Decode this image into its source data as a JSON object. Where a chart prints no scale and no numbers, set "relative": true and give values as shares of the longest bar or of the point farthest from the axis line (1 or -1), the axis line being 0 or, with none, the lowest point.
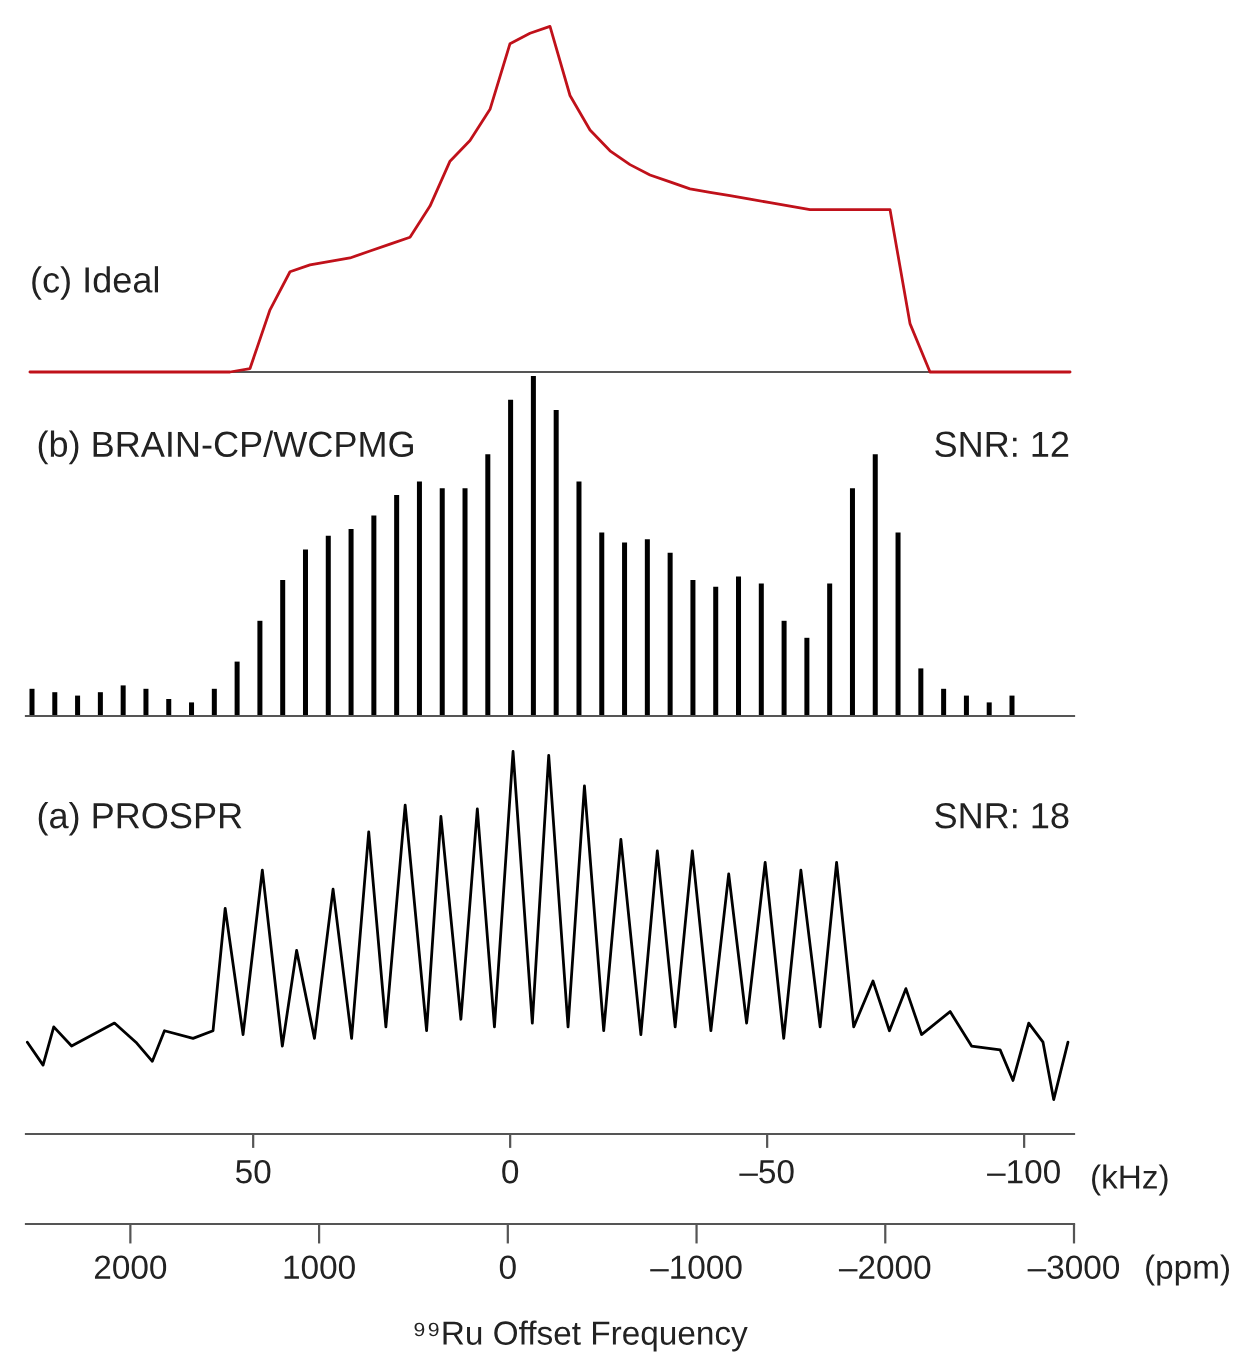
{
  "chart_data": [
    {
      "type": "line",
      "title": "(c) Ideal",
      "relative": true,
      "tick_labels": false,
      "color": "#c0111a",
      "categories": [
        null,
        null,
        null,
        null,
        null,
        null,
        null,
        null,
        null,
        null,
        null,
        null,
        null,
        null,
        null,
        null,
        null,
        null,
        null,
        null,
        null,
        null,
        null,
        null,
        null,
        null,
        null,
        null,
        null,
        null,
        null,
        null,
        null,
        null,
        null,
        null,
        null,
        null,
        null,
        null,
        null,
        null,
        null,
        null,
        null,
        null,
        null,
        null,
        null,
        null,
        null,
        null,
        null
      ],
      "values": [
        0,
        0,
        0,
        0,
        0,
        0,
        0,
        0,
        0,
        0,
        0,
        0.01,
        0.18,
        0.29,
        0.31,
        0.32,
        0.33,
        0.35,
        0.37,
        0.39,
        0.48,
        0.61,
        0.67,
        0.76,
        0.95,
        0.98,
        1.0,
        0.8,
        0.7,
        0.64,
        0.6,
        0.57,
        0.55,
        0.53,
        0.52,
        0.51,
        0.5,
        0.49,
        0.48,
        0.47,
        0.47,
        0.47,
        0.47,
        0.47,
        0.14,
        0,
        0,
        0,
        0,
        0,
        0,
        0,
        0
      ]
    },
    {
      "type": "bar",
      "title": "(b) BRAIN-CP/WCPMG",
      "relative": true,
      "tick_labels": false,
      "color": "#000000",
      "annotations": [
        "SNR: 12"
      ],
      "categories": [
        null,
        null,
        null,
        null,
        null,
        null,
        null,
        null,
        null,
        null,
        null,
        null,
        null,
        null,
        null,
        null,
        null,
        null,
        null,
        null,
        null,
        null,
        null,
        null,
        null,
        null,
        null,
        null,
        null,
        null,
        null,
        null,
        null,
        null,
        null,
        null,
        null,
        null,
        null,
        null,
        null,
        null,
        null,
        null
      ],
      "values": [
        0.08,
        0.07,
        0.06,
        0.07,
        0.09,
        0.08,
        0.05,
        0.04,
        0.08,
        0.16,
        0.28,
        0.4,
        0.49,
        0.53,
        0.55,
        0.59,
        0.65,
        0.69,
        0.67,
        0.67,
        0.77,
        0.93,
        1.0,
        0.9,
        0.69,
        0.54,
        0.51,
        0.52,
        0.48,
        0.4,
        0.38,
        0.41,
        0.39,
        0.28,
        0.23,
        0.39,
        0.67,
        0.77,
        0.54,
        0.14,
        0.08,
        0.06,
        0.04,
        0.06
      ]
    },
    {
      "type": "line",
      "title": "(a) PROSPR",
      "relative": true,
      "tick_labels": "x",
      "color": "#000000",
      "xlim": [
        94.2,
        -109.7
      ],
      "xticks": [
        50,
        0,
        {
          "value": -50,
          "label": "–50"
        },
        {
          "value": -100,
          "label": "–100"
        }
      ],
      "xlabel": "(kHz)",
      "x2lim": [
        2553,
        -3000
      ],
      "x2ticks": [
        2000,
        1000,
        0,
        {
          "value": -1000,
          "label": "–1000"
        },
        {
          "value": -2000,
          "label": "–2000"
        },
        {
          "value": -3000,
          "label": "–3000"
        }
      ],
      "x2label": "(ppm)",
      "annotations": [
        "SNR: 18",
        "⁹⁹Ru Offset Frequency"
      ],
      "x": [
        93.94,
        90.88,
        88.8,
        85.33,
        81.16,
        76.99,
        72.82,
        69.62,
        67.26,
        61.7,
        57.81,
        55.45,
        51.97,
        48.22,
        44.33,
        41.55,
        38.08,
        34.46,
        30.85,
        27.52,
        24.18,
        20.43,
        16.26,
        13.48,
        9.59,
        6.39,
        3.06,
        -0.56,
        -4.31,
        -7.5,
        -11.26,
        -14.45,
        -18.2,
        -21.54,
        -25.43,
        -28.63,
        -32.1,
        -35.44,
        -39.05,
        -42.52,
        -46.0,
        -49.61,
        -53.22,
        -56.56,
        -60.31,
        -63.51,
        -66.84,
        -70.59,
        -73.79,
        -76.99,
        -80.04,
        -85.6,
        -89.77,
        -95.33,
        -97.83,
        -100.89,
        -103.67,
        -105.75,
        -108.53
      ],
      "values": [
        0.24,
        0.18,
        0.28,
        0.23,
        0.26,
        0.29,
        0.24,
        0.19,
        0.27,
        0.25,
        0.27,
        0.59,
        0.26,
        0.69,
        0.23,
        0.48,
        0.25,
        0.64,
        0.25,
        0.79,
        0.28,
        0.86,
        0.27,
        0.83,
        0.3,
        0.85,
        0.28,
        1.0,
        0.29,
        0.99,
        0.28,
        0.91,
        0.27,
        0.77,
        0.26,
        0.74,
        0.28,
        0.74,
        0.27,
        0.68,
        0.29,
        0.71,
        0.25,
        0.69,
        0.28,
        0.71,
        0.28,
        0.4,
        0.27,
        0.38,
        0.26,
        0.32,
        0.23,
        0.22,
        0.14,
        0.29,
        0.24,
        0.09,
        0.24
      ]
    }
  ]
}
